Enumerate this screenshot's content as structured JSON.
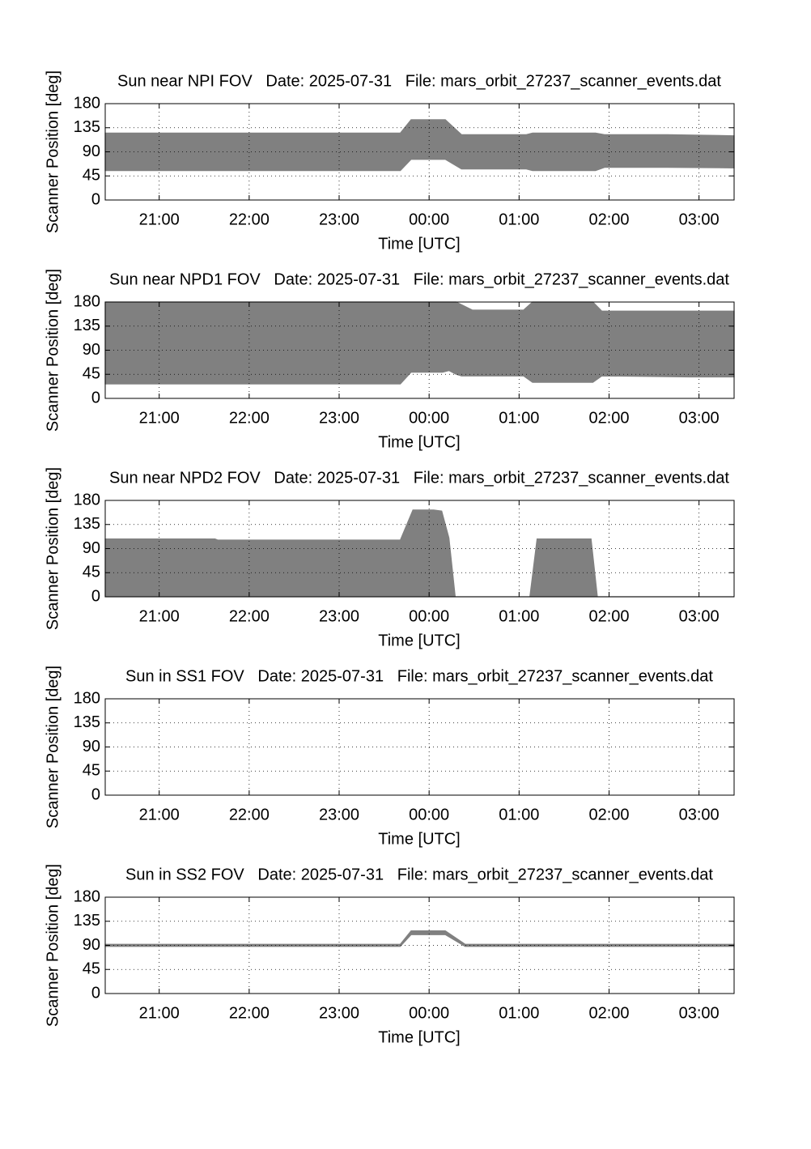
{
  "chart_data": [
    {
      "type": "band",
      "title": "Sun near NPI FOV   Date: 2025-07-31   File: mars_orbit_27237_scanner_events.dat",
      "xlabel": "Time [UTC]",
      "ylabel": "Scanner Position [deg]",
      "color": "#808080",
      "grid": true,
      "x": [
        20.4,
        23.68,
        23.8,
        24.18,
        24.36,
        25.08,
        25.15,
        25.85,
        25.95,
        26.65,
        27.39
      ],
      "high": [
        125,
        125,
        150,
        150,
        122,
        122,
        125,
        125,
        122,
        122,
        120
      ],
      "low": [
        55,
        55,
        76,
        76,
        58,
        58,
        55,
        55,
        61,
        61,
        60
      ],
      "xlim": [
        20.4,
        27.39
      ],
      "ylim": [
        0,
        180
      ],
      "yticks": [
        0,
        45,
        90,
        135,
        180
      ],
      "xticks": [
        {
          "value": 21,
          "label": "21:00"
        },
        {
          "value": 22,
          "label": "22:00"
        },
        {
          "value": 23,
          "label": "23:00"
        },
        {
          "value": 24,
          "label": "00:00"
        },
        {
          "value": 25,
          "label": "01:00"
        },
        {
          "value": 26,
          "label": "02:00"
        },
        {
          "value": 27,
          "label": "03:00"
        }
      ]
    },
    {
      "type": "band",
      "title": "Sun near NPD1 FOV   Date: 2025-07-31   File: mars_orbit_27237_scanner_events.dat",
      "xlabel": "Time [UTC]",
      "ylabel": "Scanner Position [deg]",
      "color": "#808080",
      "grid": true,
      "x": [
        20.4,
        23.68,
        23.8,
        24.15,
        24.22,
        24.3,
        24.36,
        24.48,
        25.05,
        25.15,
        25.82,
        25.92,
        26.9,
        27.39
      ],
      "high": [
        180,
        180,
        180,
        180,
        180,
        180,
        175,
        165,
        165,
        180,
        180,
        163,
        163,
        163
      ],
      "low": [
        27,
        27,
        49,
        49,
        52,
        45,
        42,
        42,
        42,
        30,
        30,
        42,
        40,
        40
      ],
      "xlim": [
        20.4,
        27.39
      ],
      "ylim": [
        0,
        180
      ],
      "yticks": [
        0,
        45,
        90,
        135,
        180
      ],
      "xticks": [
        {
          "value": 21,
          "label": "21:00"
        },
        {
          "value": 22,
          "label": "22:00"
        },
        {
          "value": 23,
          "label": "23:00"
        },
        {
          "value": 24,
          "label": "00:00"
        },
        {
          "value": 25,
          "label": "01:00"
        },
        {
          "value": 26,
          "label": "02:00"
        },
        {
          "value": 27,
          "label": "03:00"
        }
      ]
    },
    {
      "type": "band",
      "title": "Sun near NPD2 FOV   Date: 2025-07-31   File: mars_orbit_27237_scanner_events.dat",
      "xlabel": "Time [UTC]",
      "ylabel": "Scanner Position [deg]",
      "color": "#808080",
      "grid": true,
      "x": [
        20.4,
        21.62,
        21.65,
        23.68,
        23.82,
        24.05,
        24.14,
        24.22,
        24.29,
        25.12,
        25.2,
        25.8,
        25.87,
        27.39
      ],
      "high": [
        108,
        108,
        106,
        106,
        162,
        162,
        160,
        110,
        0,
        0,
        108,
        108,
        0,
        0
      ],
      "low": [
        0,
        0,
        0,
        0,
        0,
        0,
        0,
        0,
        0,
        0,
        0,
        0,
        0,
        0
      ],
      "xlim": [
        20.4,
        27.39
      ],
      "ylim": [
        0,
        180
      ],
      "yticks": [
        0,
        45,
        90,
        135,
        180
      ],
      "xticks": [
        {
          "value": 21,
          "label": "21:00"
        },
        {
          "value": 22,
          "label": "22:00"
        },
        {
          "value": 23,
          "label": "23:00"
        },
        {
          "value": 24,
          "label": "00:00"
        },
        {
          "value": 25,
          "label": "01:00"
        },
        {
          "value": 26,
          "label": "02:00"
        },
        {
          "value": 27,
          "label": "03:00"
        }
      ]
    },
    {
      "type": "band",
      "title": "Sun in SS1 FOV   Date: 2025-07-31   File: mars_orbit_27237_scanner_events.dat",
      "xlabel": "Time [UTC]",
      "ylabel": "Scanner Position [deg]",
      "color": "#808080",
      "grid": true,
      "x": [],
      "high": [],
      "low": [],
      "xlim": [
        20.4,
        27.39
      ],
      "ylim": [
        0,
        180
      ],
      "yticks": [
        0,
        45,
        90,
        135,
        180
      ],
      "xticks": [
        {
          "value": 21,
          "label": "21:00"
        },
        {
          "value": 22,
          "label": "22:00"
        },
        {
          "value": 23,
          "label": "23:00"
        },
        {
          "value": 24,
          "label": "00:00"
        },
        {
          "value": 25,
          "label": "01:00"
        },
        {
          "value": 26,
          "label": "02:00"
        },
        {
          "value": 27,
          "label": "03:00"
        }
      ]
    },
    {
      "type": "band",
      "title": "Sun in SS2 FOV   Date: 2025-07-31   File: mars_orbit_27237_scanner_events.dat",
      "xlabel": "Time [UTC]",
      "ylabel": "Scanner Position [deg]",
      "color": "#808080",
      "grid": true,
      "x": [
        20.4,
        23.68,
        23.8,
        24.18,
        24.4,
        27.39
      ],
      "high": [
        92,
        92,
        117,
        117,
        92,
        92
      ],
      "low": [
        88,
        88,
        110,
        110,
        88,
        88
      ],
      "xlim": [
        20.4,
        27.39
      ],
      "ylim": [
        0,
        180
      ],
      "yticks": [
        0,
        45,
        90,
        135,
        180
      ],
      "xticks": [
        {
          "value": 21,
          "label": "21:00"
        },
        {
          "value": 22,
          "label": "22:00"
        },
        {
          "value": 23,
          "label": "23:00"
        },
        {
          "value": 24,
          "label": "00:00"
        },
        {
          "value": 25,
          "label": "01:00"
        },
        {
          "value": 26,
          "label": "02:00"
        },
        {
          "value": 27,
          "label": "03:00"
        }
      ]
    }
  ]
}
